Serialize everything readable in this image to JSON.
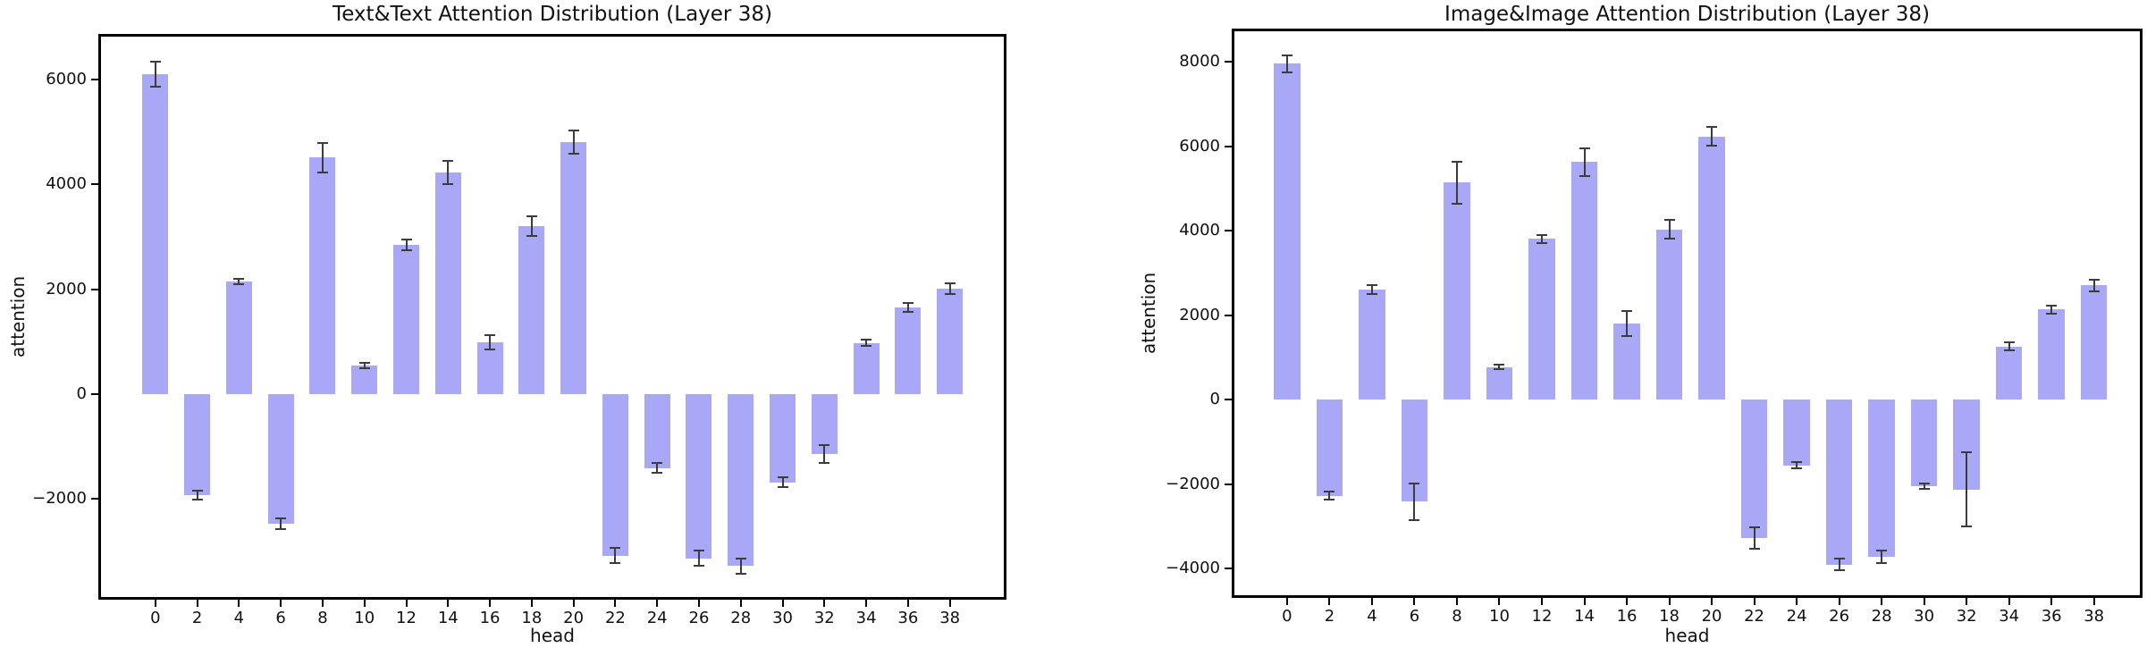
{
  "chart_data": [
    {
      "type": "bar",
      "title": "Text&Text Attention Distribution (Layer 38)",
      "xlabel": "head",
      "ylabel": "attention",
      "categories": [
        "0",
        "2",
        "4",
        "6",
        "8",
        "10",
        "12",
        "14",
        "16",
        "18",
        "20",
        "22",
        "24",
        "26",
        "28",
        "30",
        "32",
        "34",
        "36",
        "38"
      ],
      "values": [
        6100,
        -1930,
        2150,
        -2470,
        4510,
        545,
        2850,
        4230,
        985,
        3200,
        4810,
        -3080,
        -1410,
        -3130,
        -3280,
        -1680,
        -1145,
        980,
        1660,
        2010
      ],
      "errors": [
        240,
        90,
        55,
        100,
        280,
        45,
        105,
        225,
        135,
        190,
        225,
        150,
        90,
        140,
        140,
        100,
        170,
        60,
        85,
        100
      ],
      "ylim": [
        -3870,
        6820
      ],
      "xlim": [
        -1.3,
        20.29
      ],
      "ytick_values": [
        -2000,
        0,
        2000,
        4000,
        6000
      ],
      "ytick_labels": [
        "−2000",
        "0",
        "2000",
        "4000",
        "6000"
      ],
      "bar_width": 0.62,
      "bar_color": "#a8a8f7",
      "error_color": "#3c3c3c",
      "legend": "none",
      "grid": "off"
    },
    {
      "type": "bar",
      "title": "Image&Image Attention Distribution (Layer 38)",
      "xlabel": "head",
      "ylabel": "attention",
      "categories": [
        "0",
        "2",
        "4",
        "6",
        "8",
        "10",
        "12",
        "14",
        "16",
        "18",
        "20",
        "22",
        "24",
        "26",
        "28",
        "30",
        "32",
        "34",
        "36",
        "38"
      ],
      "values": [
        7950,
        -2280,
        2600,
        -2420,
        5140,
        770,
        3800,
        5620,
        1800,
        4030,
        6230,
        -3280,
        -1560,
        -3910,
        -3720,
        -2050,
        -2130,
        1250,
        2130,
        2700
      ],
      "errors": [
        200,
        100,
        100,
        430,
        500,
        50,
        90,
        330,
        300,
        220,
        220,
        250,
        70,
        140,
        150,
        70,
        880,
        95,
        100,
        130
      ],
      "ylim": [
        -4635,
        8720
      ],
      "xlim": [
        -1.24,
        20.08
      ],
      "ytick_values": [
        -4000,
        -2000,
        0,
        2000,
        4000,
        6000,
        8000
      ],
      "ytick_labels": [
        "−4000",
        "−2000",
        "0",
        "2000",
        "4000",
        "6000",
        "8000"
      ],
      "bar_width": 0.62,
      "bar_color": "#a8a8f7",
      "error_color": "#3c3c3c",
      "legend": "none",
      "grid": "off"
    }
  ]
}
